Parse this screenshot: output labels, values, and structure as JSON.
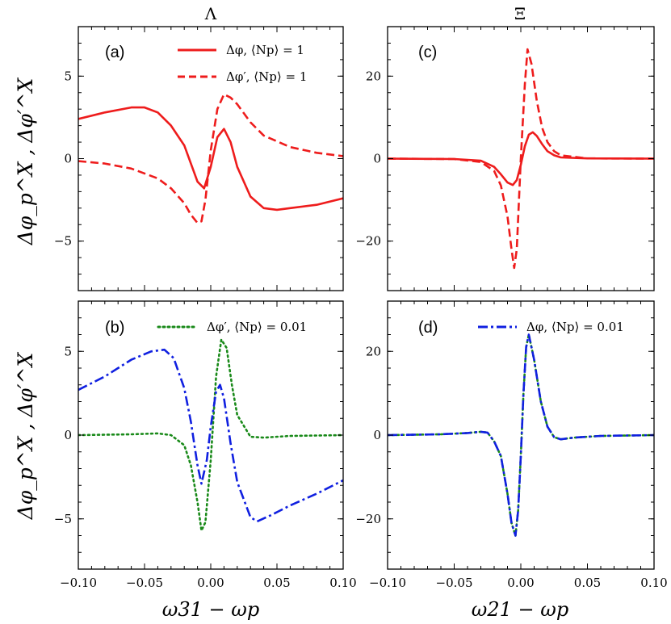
{
  "figure": {
    "col_titles": [
      "Λ",
      "Ξ"
    ],
    "ylabel_text": "Δφ_p^X , Δφ′^X",
    "xlabel_left": "ω31 − ωp",
    "xlabel_right": "ω21 − ωp"
  },
  "colors": {
    "red": "#ee1c1c",
    "green": "#1a8a1a",
    "blue": "#1020e0"
  },
  "chart_data": [
    {
      "panel": "(a)",
      "type": "line",
      "xlim": [
        -0.1,
        0.1
      ],
      "ylim": [
        -8,
        8
      ],
      "yticks": [
        -5,
        0,
        5
      ],
      "xticks": [
        -0.1,
        -0.05,
        0.0,
        0.05,
        0.1
      ],
      "xtick_labels": [
        "−0.10",
        "−0.05",
        "0.00",
        "0.05",
        "0.10"
      ],
      "ytick_labels": [
        "−5",
        "0",
        "5"
      ],
      "show_xticklabels": false,
      "legend_position": "top-right",
      "series": [
        {
          "name": "Δφ, ⟨Np⟩ = 1",
          "color": "#ee1c1c",
          "style": "solid",
          "x": [
            -0.1,
            -0.08,
            -0.06,
            -0.05,
            -0.04,
            -0.03,
            -0.02,
            -0.015,
            -0.01,
            -0.005,
            0.0,
            0.005,
            0.01,
            0.015,
            0.02,
            0.03,
            0.04,
            0.05,
            0.06,
            0.08,
            0.1
          ],
          "y": [
            2.4,
            2.8,
            3.1,
            3.1,
            2.8,
            2.0,
            0.8,
            -0.3,
            -1.4,
            -1.8,
            -0.5,
            1.3,
            1.8,
            1.0,
            -0.5,
            -2.3,
            -3.0,
            -3.1,
            -3.0,
            -2.8,
            -2.4
          ]
        },
        {
          "name": "Δφ′, ⟨Np⟩ = 1",
          "color": "#ee1c1c",
          "style": "dashed",
          "x": [
            -0.1,
            -0.08,
            -0.06,
            -0.04,
            -0.03,
            -0.02,
            -0.015,
            -0.01,
            -0.007,
            -0.004,
            0.0,
            0.005,
            0.01,
            0.015,
            0.02,
            0.03,
            0.04,
            0.06,
            0.08,
            0.1
          ],
          "y": [
            -0.15,
            -0.3,
            -0.6,
            -1.2,
            -1.8,
            -2.7,
            -3.4,
            -3.9,
            -3.8,
            -2.5,
            0.5,
            3.0,
            3.9,
            3.7,
            3.3,
            2.2,
            1.4,
            0.7,
            0.35,
            0.15
          ]
        }
      ]
    },
    {
      "panel": "(b)",
      "type": "line",
      "xlim": [
        -0.1,
        0.1
      ],
      "ylim": [
        -8,
        8
      ],
      "yticks": [
        -5,
        0,
        5
      ],
      "xticks": [
        -0.1,
        -0.05,
        0.0,
        0.05,
        0.1
      ],
      "xtick_labels": [
        "−0.10",
        "−0.05",
        "0.00",
        "0.05",
        "0.10"
      ],
      "ytick_labels": [
        "−5",
        "0",
        "5"
      ],
      "show_xticklabels": true,
      "legend_position": "top-right",
      "series": [
        {
          "name": "Δφ′, ⟨Np⟩ = 0.01",
          "color": "#1a8a1a",
          "style": "dotted",
          "x": [
            -0.1,
            -0.06,
            -0.04,
            -0.03,
            -0.02,
            -0.015,
            -0.01,
            -0.007,
            -0.004,
            0.0,
            0.004,
            0.008,
            0.012,
            0.016,
            0.02,
            0.03,
            0.04,
            0.06,
            0.1
          ],
          "y": [
            0.0,
            0.05,
            0.1,
            0.0,
            -0.6,
            -1.8,
            -4.0,
            -5.7,
            -5.2,
            -1.5,
            3.5,
            5.7,
            5.2,
            3.0,
            1.2,
            -0.1,
            -0.15,
            -0.05,
            0.0
          ]
        },
        {
          "name": "Δφ, ⟨Np⟩ = 0.01",
          "color": "#1020e0",
          "style": "dashdot",
          "x": [
            -0.1,
            -0.08,
            -0.06,
            -0.045,
            -0.035,
            -0.028,
            -0.02,
            -0.015,
            -0.01,
            -0.007,
            -0.003,
            0.0,
            0.004,
            0.007,
            0.01,
            0.015,
            0.02,
            0.03,
            0.035,
            0.045,
            0.06,
            0.08,
            0.1
          ],
          "y": [
            2.7,
            3.5,
            4.5,
            5.0,
            5.1,
            4.6,
            2.8,
            0.8,
            -1.8,
            -2.9,
            -1.5,
            0.5,
            2.6,
            3.0,
            2.2,
            -0.5,
            -2.8,
            -4.9,
            -5.15,
            -4.8,
            -4.2,
            -3.5,
            -2.7
          ]
        }
      ]
    },
    {
      "panel": "(c)",
      "type": "line",
      "xlim": [
        -0.1,
        0.1
      ],
      "ylim": [
        -32,
        32
      ],
      "yticks": [
        -20,
        0,
        20
      ],
      "xticks": [
        -0.1,
        -0.05,
        0.0,
        0.05,
        0.1
      ],
      "xtick_labels": [
        "−0.10",
        "−0.05",
        "0.00",
        "0.05",
        "0.10"
      ],
      "ytick_labels": [
        "−20",
        "0",
        "20"
      ],
      "show_xticklabels": false,
      "series": [
        {
          "name": "solid",
          "color": "#ee1c1c",
          "style": "solid",
          "x": [
            -0.1,
            -0.05,
            -0.03,
            -0.02,
            -0.015,
            -0.01,
            -0.006,
            -0.003,
            0.0,
            0.003,
            0.006,
            0.009,
            0.012,
            0.016,
            0.02,
            0.025,
            0.03,
            0.05,
            0.1
          ],
          "y": [
            0.0,
            -0.1,
            -0.5,
            -2.0,
            -3.8,
            -5.8,
            -6.4,
            -5.2,
            -1.5,
            3.0,
            5.8,
            6.4,
            5.5,
            3.5,
            1.8,
            0.8,
            0.3,
            0.05,
            0.0
          ]
        },
        {
          "name": "dashed",
          "color": "#ee1c1c",
          "style": "dashed",
          "x": [
            -0.1,
            -0.05,
            -0.03,
            -0.02,
            -0.015,
            -0.01,
            -0.007,
            -0.005,
            -0.003,
            0.0,
            0.003,
            0.005,
            0.008,
            0.012,
            0.016,
            0.02,
            0.025,
            0.03,
            0.05,
            0.1
          ],
          "y": [
            0.0,
            -0.1,
            -0.8,
            -3.0,
            -6.5,
            -14.0,
            -22.0,
            -26.5,
            -22.0,
            0.0,
            18.0,
            26.5,
            23.0,
            14.0,
            7.5,
            4.0,
            1.8,
            0.8,
            0.05,
            0.0
          ]
        }
      ]
    },
    {
      "panel": "(d)",
      "type": "line",
      "xlim": [
        -0.1,
        0.1
      ],
      "ylim": [
        -32,
        32
      ],
      "yticks": [
        -20,
        0,
        20
      ],
      "xticks": [
        -0.1,
        -0.05,
        0.0,
        0.05,
        0.1
      ],
      "xtick_labels": [
        "−0.10",
        "−0.05",
        "0.00",
        "0.05",
        "0.10"
      ],
      "ytick_labels": [
        "−20",
        "0",
        "20"
      ],
      "show_xticklabels": true,
      "legend_position": "top-right",
      "series": [
        {
          "name": "green-dotted",
          "color": "#1a8a1a",
          "style": "dotted",
          "x": [
            -0.1,
            -0.06,
            -0.04,
            -0.03,
            -0.025,
            -0.02,
            -0.015,
            -0.01,
            -0.007,
            -0.004,
            -0.002,
            0.0,
            0.002,
            0.004,
            0.006,
            0.01,
            0.015,
            0.02,
            0.025,
            0.03,
            0.04,
            0.06,
            0.1
          ],
          "y": [
            0.0,
            0.2,
            0.5,
            0.8,
            0.6,
            -1.5,
            -5.0,
            -14.0,
            -21.0,
            -24.0,
            -18.0,
            -5.0,
            10.0,
            21.0,
            24.0,
            18.0,
            8.0,
            2.0,
            -0.5,
            -1.0,
            -0.6,
            -0.2,
            0.0
          ]
        },
        {
          "name": "Δφ, ⟨Np⟩ = 0.01",
          "color": "#1020e0",
          "style": "dashdot",
          "x": [
            -0.1,
            -0.06,
            -0.04,
            -0.03,
            -0.025,
            -0.02,
            -0.015,
            -0.01,
            -0.007,
            -0.004,
            -0.002,
            0.0,
            0.002,
            0.004,
            0.006,
            0.01,
            0.015,
            0.02,
            0.025,
            0.03,
            0.04,
            0.06,
            0.1
          ],
          "y": [
            0.0,
            0.2,
            0.5,
            0.8,
            0.6,
            -1.5,
            -5.0,
            -14.0,
            -21.0,
            -24.0,
            -18.0,
            -5.0,
            10.0,
            21.0,
            24.0,
            18.0,
            8.0,
            2.0,
            -0.5,
            -1.0,
            -0.6,
            -0.2,
            0.0
          ]
        }
      ]
    }
  ],
  "legends": {
    "a": {
      "solid": "Δφ, ⟨Np⟩ = 1",
      "dashed": "Δφ′, ⟨Np⟩ = 1"
    },
    "b": {
      "dotted": "Δφ′, ⟨Np⟩ = 0.01"
    },
    "d": {
      "dashdot": "Δφ, ⟨Np⟩ = 0.01"
    }
  }
}
